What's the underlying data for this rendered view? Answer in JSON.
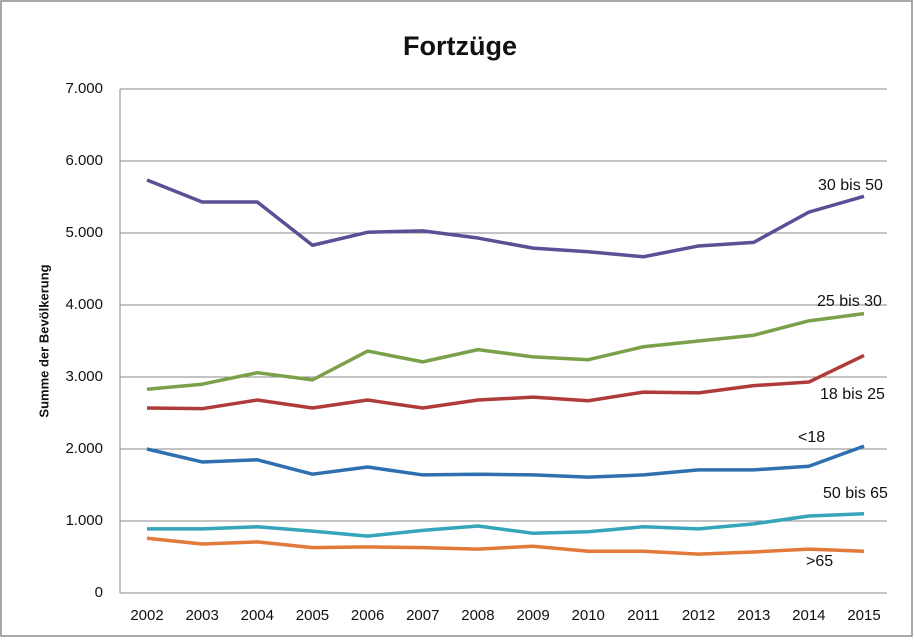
{
  "chart_data": {
    "type": "line",
    "title": "Fortzüge",
    "y_label": "Summe der Bevölkerung",
    "categories": [
      "2002",
      "2003",
      "2004",
      "2005",
      "2006",
      "2007",
      "2008",
      "2009",
      "2010",
      "2011",
      "2012",
      "2013",
      "2014",
      "2015"
    ],
    "series": [
      {
        "name": "30 bis 50",
        "color": "#5b4f96",
        "values": [
          5736,
          5430,
          5430,
          4830,
          5010,
          5030,
          4930,
          4790,
          4740,
          4670,
          4820,
          4870,
          5290,
          5510
        ]
      },
      {
        "name": "25 bis 30",
        "color": "#7aa14a",
        "values": [
          2830,
          2900,
          3060,
          2960,
          3360,
          3210,
          3380,
          3280,
          3240,
          3420,
          3500,
          3580,
          3780,
          3880
        ]
      },
      {
        "name": "18 bis 25",
        "color": "#b03b3b",
        "values": [
          2570,
          2560,
          2680,
          2570,
          2680,
          2570,
          2680,
          2720,
          2670,
          2790,
          2780,
          2880,
          2930,
          3300
        ]
      },
      {
        "name": "<18",
        "color": "#2e6fb0",
        "values": [
          2000,
          1820,
          1850,
          1650,
          1750,
          1640,
          1650,
          1640,
          1610,
          1640,
          1710,
          1710,
          1760,
          2040
        ]
      },
      {
        "name": "50 bis 65",
        "color": "#35a5b9",
        "values": [
          890,
          890,
          920,
          860,
          790,
          870,
          930,
          830,
          850,
          920,
          890,
          960,
          1070,
          1100
        ]
      },
      {
        "name": ">65",
        "color": "#e3793a",
        "values": [
          760,
          680,
          710,
          630,
          640,
          630,
          610,
          650,
          580,
          580,
          540,
          570,
          610,
          580
        ]
      }
    ],
    "ylim": [
      0,
      7000
    ],
    "yticks": [
      0,
      {
        "value": 1000,
        "label": "1.000"
      },
      {
        "value": 2000,
        "label": "2.000"
      },
      {
        "value": 3000,
        "label": "3.000"
      },
      {
        "value": 4000,
        "label": "4.000"
      },
      {
        "value": 5000,
        "label": "5.000"
      },
      {
        "value": 6000,
        "label": "6.000"
      },
      {
        "value": 7000,
        "label": "7.000"
      }
    ],
    "grid": true
  }
}
